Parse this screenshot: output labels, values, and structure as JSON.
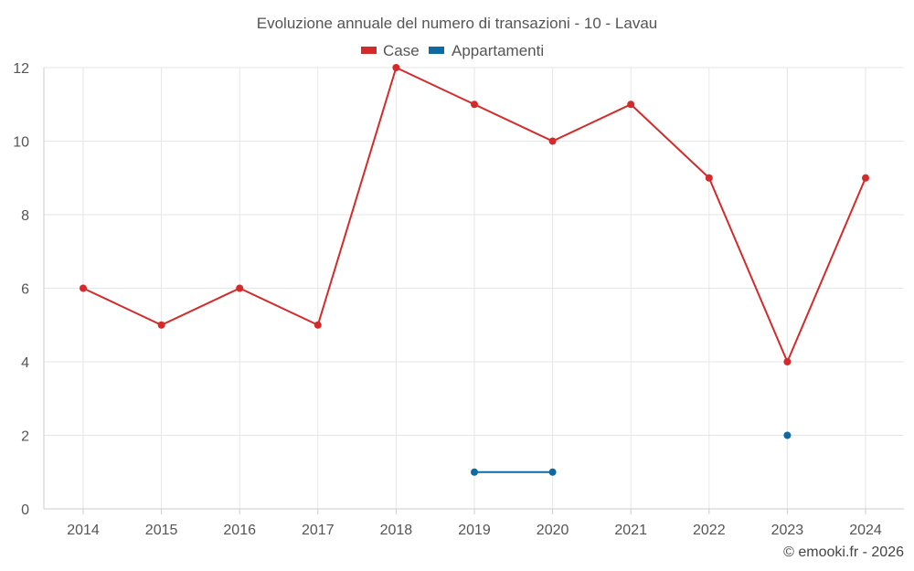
{
  "chart_data": {
    "type": "line",
    "title": "Evoluzione annuale del numero di transazioni - 10 - Lavau",
    "xlabel": "",
    "ylabel": "",
    "categories": [
      "2014",
      "2015",
      "2016",
      "2017",
      "2018",
      "2019",
      "2020",
      "2021",
      "2022",
      "2023",
      "2024"
    ],
    "ylim": [
      0,
      12
    ],
    "yticks": [
      0,
      2,
      4,
      6,
      8,
      10,
      12
    ],
    "grid": true,
    "legend_position": "top-center",
    "series": [
      {
        "name": "Case",
        "color": "#d42a2a",
        "values": [
          6,
          5,
          6,
          5,
          12,
          11,
          10,
          11,
          9,
          4,
          9
        ]
      },
      {
        "name": "Appartamenti",
        "color": "#0f6aa3",
        "values": [
          null,
          null,
          null,
          null,
          null,
          1,
          1,
          null,
          null,
          2,
          null
        ]
      }
    ]
  },
  "credit": "© emooki.fr - 2026"
}
